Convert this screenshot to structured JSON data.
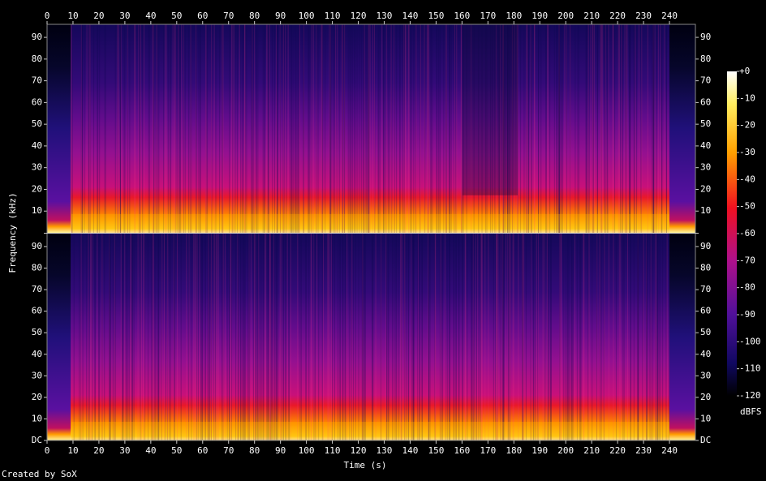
{
  "chart_data": {
    "type": "spectrogram",
    "xlabel": "Time (s)",
    "ylabel": "Frequency (kHz)",
    "credit": "Created by SoX",
    "xlim": [
      0,
      250
    ],
    "xticks": [
      0,
      10,
      20,
      30,
      40,
      50,
      60,
      70,
      80,
      90,
      100,
      110,
      120,
      130,
      140,
      150,
      160,
      170,
      180,
      190,
      200,
      210,
      220,
      230,
      240
    ],
    "channels": [
      {
        "ylim": [
          0,
          96
        ],
        "yticks": [
          10,
          20,
          30,
          40,
          50,
          60,
          70,
          80,
          90
        ]
      },
      {
        "ylim": [
          0,
          96
        ],
        "yticks": [
          {
            "value": 0,
            "label": "DC"
          },
          10,
          20,
          30,
          40,
          50,
          60,
          70,
          80,
          90
        ]
      }
    ],
    "colorbar": {
      "label": "dBFS",
      "lim": [
        -120,
        0
      ],
      "ticks": [
        {
          "value": 0,
          "label": "+0"
        },
        -10,
        -20,
        -30,
        -40,
        -50,
        -60,
        -70,
        -80,
        -90,
        -100,
        -110,
        -120
      ]
    }
  }
}
